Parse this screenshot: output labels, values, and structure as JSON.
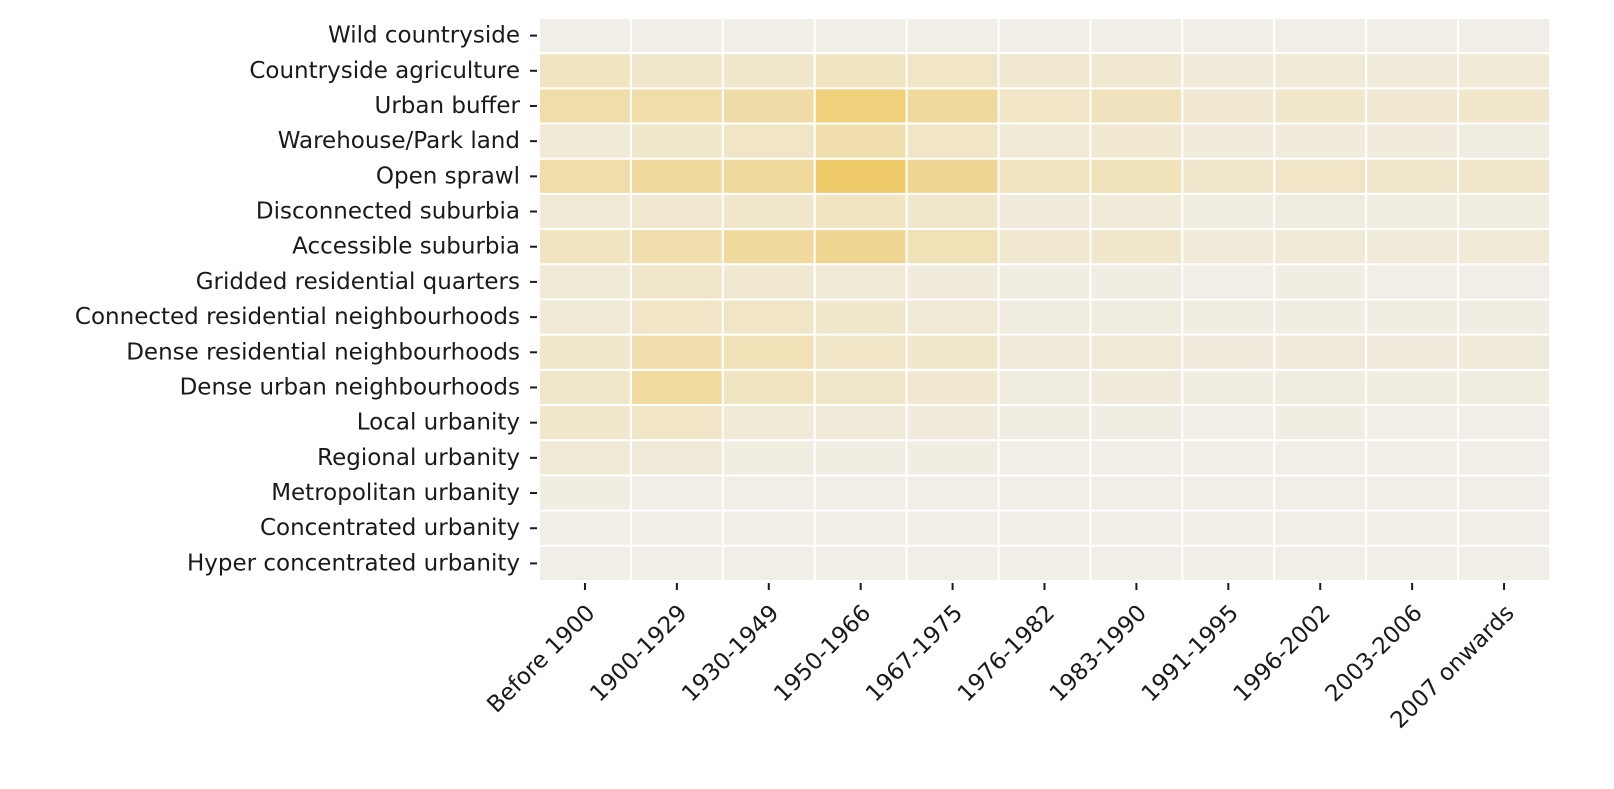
{
  "chart_data": {
    "type": "heatmap",
    "title": "",
    "xlabel": "",
    "ylabel": "",
    "x_categories": [
      "Before 1900",
      "1900-1929",
      "1930-1949",
      "1950-1966",
      "1967-1975",
      "1976-1982",
      "1983-1990",
      "1991-1995",
      "1996-2002",
      "2003-2006",
      "2007 onwards"
    ],
    "y_categories": [
      "Wild countryside",
      "Countryside agriculture",
      "Urban buffer",
      "Warehouse/Park land",
      "Open sprawl",
      "Disconnected suburbia",
      "Accessible suburbia",
      "Gridded residential quarters",
      "Connected residential neighbourhoods",
      "Dense residential neighbourhoods",
      "Dense urban neighbourhoods",
      "Local urbanity",
      "Regional urbanity",
      "Metropolitan urbanity",
      "Concentrated urbanity",
      "Hyper concentrated urbanity"
    ],
    "values": [
      [
        0.02,
        0.02,
        0.02,
        0.02,
        0.02,
        0.02,
        0.02,
        0.02,
        0.02,
        0.02,
        0.02
      ],
      [
        0.25,
        0.18,
        0.18,
        0.25,
        0.22,
        0.15,
        0.15,
        0.1,
        0.12,
        0.1,
        0.12
      ],
      [
        0.4,
        0.4,
        0.42,
        0.7,
        0.48,
        0.22,
        0.28,
        0.15,
        0.18,
        0.15,
        0.18
      ],
      [
        0.12,
        0.2,
        0.22,
        0.38,
        0.22,
        0.12,
        0.15,
        0.08,
        0.08,
        0.08,
        0.06
      ],
      [
        0.4,
        0.48,
        0.48,
        0.8,
        0.55,
        0.25,
        0.3,
        0.18,
        0.22,
        0.18,
        0.18
      ],
      [
        0.12,
        0.15,
        0.18,
        0.25,
        0.18,
        0.08,
        0.1,
        0.05,
        0.06,
        0.05,
        0.05
      ],
      [
        0.25,
        0.38,
        0.48,
        0.55,
        0.32,
        0.15,
        0.18,
        0.1,
        0.12,
        0.1,
        0.12
      ],
      [
        0.12,
        0.2,
        0.15,
        0.12,
        0.08,
        0.04,
        0.04,
        0.02,
        0.04,
        0.02,
        0.02
      ],
      [
        0.12,
        0.22,
        0.22,
        0.18,
        0.12,
        0.06,
        0.06,
        0.04,
        0.05,
        0.04,
        0.04
      ],
      [
        0.18,
        0.38,
        0.32,
        0.22,
        0.18,
        0.1,
        0.12,
        0.08,
        0.1,
        0.08,
        0.1
      ],
      [
        0.2,
        0.45,
        0.25,
        0.2,
        0.15,
        0.06,
        0.08,
        0.05,
        0.06,
        0.05,
        0.06
      ],
      [
        0.18,
        0.22,
        0.12,
        0.1,
        0.08,
        0.04,
        0.04,
        0.02,
        0.04,
        0.02,
        0.02
      ],
      [
        0.12,
        0.1,
        0.05,
        0.04,
        0.04,
        0.02,
        0.02,
        0.02,
        0.02,
        0.02,
        0.02
      ],
      [
        0.04,
        0.02,
        0.02,
        0.02,
        0.02,
        0.02,
        0.02,
        0.02,
        0.02,
        0.02,
        0.02
      ],
      [
        0.02,
        0.02,
        0.02,
        0.02,
        0.02,
        0.02,
        0.02,
        0.02,
        0.02,
        0.02,
        0.02
      ],
      [
        0.02,
        0.02,
        0.02,
        0.02,
        0.02,
        0.02,
        0.02,
        0.02,
        0.02,
        0.02,
        0.02
      ]
    ],
    "value_range": [
      0,
      1
    ],
    "colormap": {
      "low": "#f0efe9",
      "high": "#f0c24a"
    },
    "cell_border_color": "#ffffff",
    "colorbar": false,
    "grid": false
  }
}
